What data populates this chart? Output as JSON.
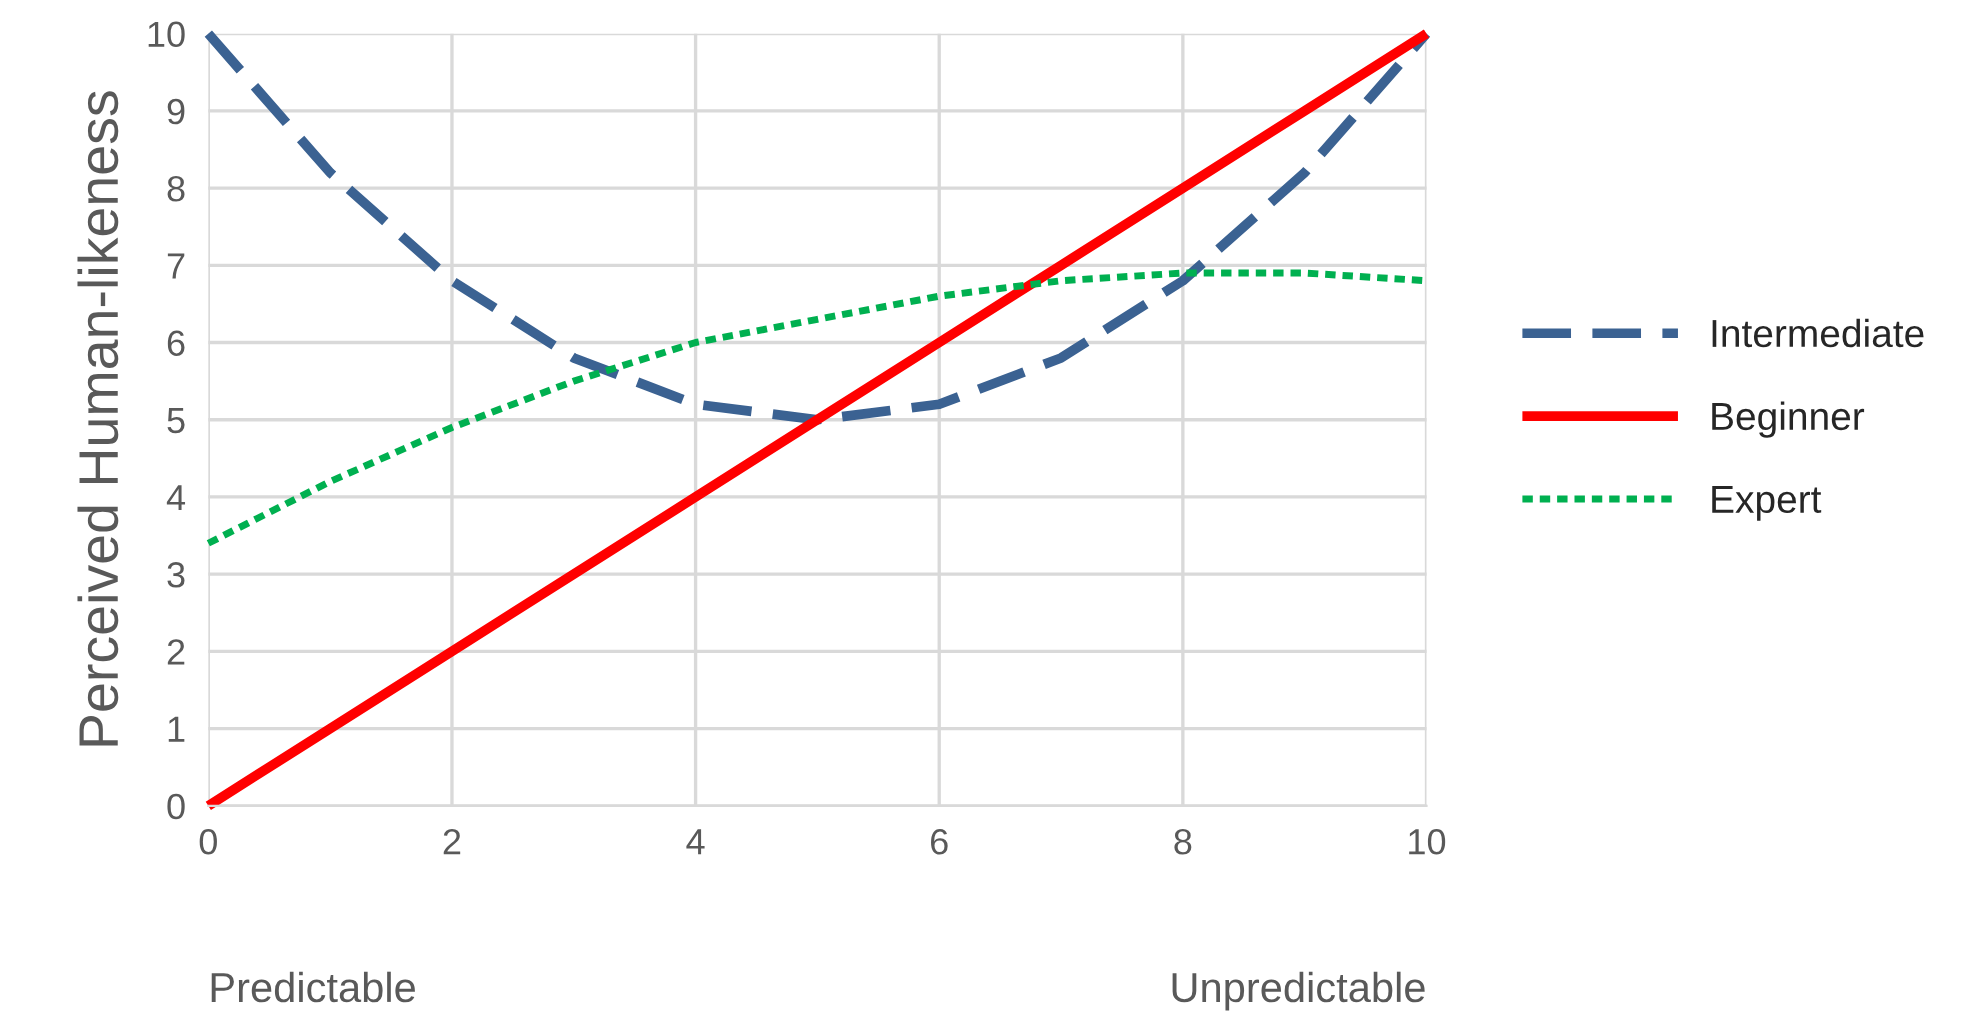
{
  "chart_data": {
    "type": "line",
    "ylabel": "Perceived Human-likeness",
    "x": [
      0,
      1,
      2,
      3,
      4,
      5,
      6,
      7,
      8,
      9,
      10
    ],
    "series": [
      {
        "name": "Intermediate",
        "color": "#3b6292",
        "line_style": "dashed",
        "values": [
          10,
          8.2,
          6.8,
          5.8,
          5.2,
          5.0,
          5.2,
          5.8,
          6.8,
          8.2,
          10
        ]
      },
      {
        "name": "Beginner",
        "color": "#ff0000",
        "line_style": "solid",
        "values": [
          0,
          1,
          2,
          3,
          4,
          5,
          6,
          7,
          8,
          9,
          10
        ]
      },
      {
        "name": "Expert",
        "color": "#00b050",
        "line_style": "dotted",
        "values": [
          3.4,
          4.2,
          4.9,
          5.5,
          6.0,
          6.3,
          6.6,
          6.8,
          6.9,
          6.9,
          6.8
        ]
      }
    ],
    "xlim": [
      0,
      10
    ],
    "xticks": [
      0,
      2,
      4,
      6,
      8,
      10
    ],
    "ylim": [
      0,
      10
    ],
    "yticks": [
      0,
      1,
      2,
      3,
      4,
      5,
      6,
      7,
      8,
      9,
      10
    ],
    "grid": true,
    "legend": "right",
    "marker": "none",
    "annotations": [
      "Predictable",
      "Unpredictable"
    ]
  }
}
